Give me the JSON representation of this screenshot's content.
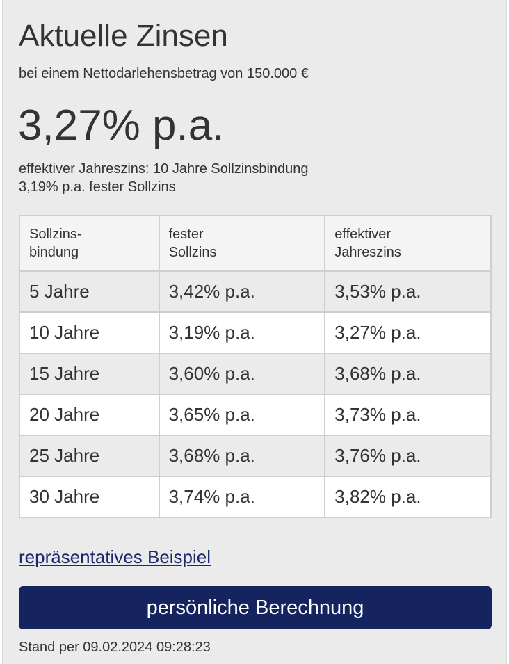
{
  "title": "Aktuelle Zinsen",
  "subtitle": "bei einem Nettodarlehensbetrag von 150.000 €",
  "headline_rate": "3,27% p.a.",
  "info": {
    "line1": "effektiver Jahreszins: 10 Jahre Sollzinsbindung",
    "line2": "3,19% p.a. fester Sollzins"
  },
  "table": {
    "headers": [
      "Sollzins-\nbindung",
      "fester\nSollzins",
      "effektiver\nJahreszins"
    ],
    "rows": [
      [
        "5 Jahre",
        "3,42% p.a.",
        "3,53% p.a."
      ],
      [
        "10 Jahre",
        "3,19% p.a.",
        "3,27% p.a."
      ],
      [
        "15 Jahre",
        "3,60% p.a.",
        "3,68% p.a."
      ],
      [
        "20 Jahre",
        "3,65% p.a.",
        "3,73% p.a."
      ],
      [
        "25 Jahre",
        "3,68% p.a.",
        "3,76% p.a."
      ],
      [
        "30 Jahre",
        "3,74% p.a.",
        "3,82% p.a."
      ]
    ]
  },
  "example_link": "repräsentatives Beispiel",
  "calc_button": "persönliche Berechnung",
  "stand": "Stand per 09.02.2024 09:28:23",
  "colors": {
    "panel_background": "#ebebeb",
    "button_background": "#15235e",
    "link": "#1b2a6b",
    "text": "#333333"
  }
}
